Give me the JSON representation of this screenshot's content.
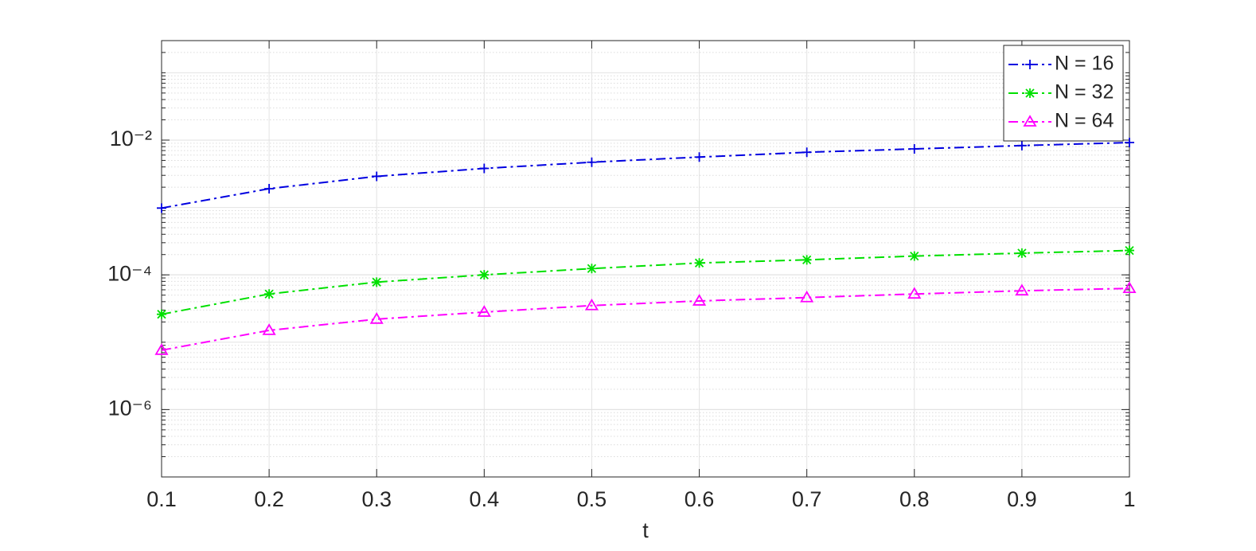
{
  "chart_data": {
    "type": "line",
    "x_label": "t",
    "x": [
      0.1,
      0.2,
      0.3,
      0.4,
      0.5,
      0.6,
      0.7,
      0.8,
      0.9,
      1
    ],
    "series": [
      {
        "name": "N = 16",
        "color": "#0000e0",
        "marker": "plus",
        "line_style": "dashdot",
        "values": [
          0.00098,
          0.0019,
          0.0029,
          0.0038,
          0.0047,
          0.0056,
          0.0066,
          0.0074,
          0.0083,
          0.0092
        ]
      },
      {
        "name": "N = 32",
        "color": "#00e000",
        "marker": "asterisk",
        "line_style": "dashdot",
        "values": [
          2.6e-05,
          5.2e-05,
          7.8e-05,
          0.0001,
          0.000124,
          0.00015,
          0.000167,
          0.00019,
          0.00021,
          0.00023
        ]
      },
      {
        "name": "N = 64",
        "color": "#ff00ff",
        "marker": "triangle",
        "line_style": "dashdot",
        "values": [
          7.6e-06,
          1.5e-05,
          2.2e-05,
          2.8e-05,
          3.5e-05,
          4.1e-05,
          4.6e-05,
          5.2e-05,
          5.8e-05,
          6.3e-05
        ]
      }
    ],
    "xlim": [
      0.1,
      1
    ],
    "xticks": [
      0.1,
      0.2,
      0.3,
      0.4,
      0.5,
      0.6,
      0.7,
      0.8,
      0.9,
      1
    ],
    "ylim": [
      1e-07,
      0.3
    ],
    "yticks": [
      {
        "value": 1e-06,
        "label": "10⁻⁶"
      },
      {
        "value": 0.0001,
        "label": "10⁻⁴"
      },
      {
        "value": 0.01,
        "label": "10⁻²"
      }
    ],
    "y_scale": "log",
    "grid": true,
    "minor_grid": true,
    "legend": "northeast"
  }
}
